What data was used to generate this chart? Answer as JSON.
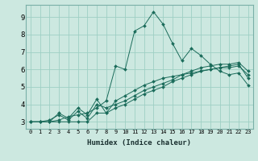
{
  "xlabel": "Humidex (Indice chaleur)",
  "ylabel": "",
  "background_color": "#cce8e0",
  "grid_color": "#9ecfc4",
  "line_color": "#1a6b5a",
  "xlim": [
    -0.5,
    23.5
  ],
  "ylim": [
    2.6,
    9.7
  ],
  "xticks": [
    0,
    1,
    2,
    3,
    4,
    5,
    6,
    7,
    8,
    9,
    10,
    11,
    12,
    13,
    14,
    15,
    16,
    17,
    18,
    19,
    20,
    21,
    22,
    23
  ],
  "yticks": [
    3,
    4,
    5,
    6,
    7,
    8,
    9
  ],
  "series": [
    [
      3.0,
      3.0,
      3.0,
      3.1,
      3.3,
      3.4,
      3.5,
      3.8,
      4.2,
      6.2,
      6.0,
      8.2,
      8.5,
      9.3,
      8.6,
      7.5,
      6.5,
      7.2,
      6.8,
      6.3,
      5.9,
      5.7,
      5.8,
      5.1
    ],
    [
      3.0,
      3.0,
      3.0,
      3.5,
      3.2,
      3.8,
      3.4,
      4.3,
      3.5,
      4.2,
      4.5,
      4.8,
      5.1,
      5.3,
      5.5,
      5.6,
      5.7,
      5.9,
      6.1,
      6.2,
      6.3,
      6.3,
      6.4,
      5.9
    ],
    [
      3.0,
      3.0,
      3.1,
      3.4,
      3.1,
      3.6,
      3.2,
      4.0,
      3.8,
      4.0,
      4.2,
      4.5,
      4.8,
      5.0,
      5.2,
      5.4,
      5.7,
      5.8,
      5.9,
      6.0,
      6.1,
      6.1,
      6.2,
      5.7
    ],
    [
      3.0,
      3.0,
      3.0,
      3.0,
      3.0,
      3.0,
      3.0,
      3.5,
      3.5,
      3.8,
      4.0,
      4.3,
      4.6,
      4.8,
      5.0,
      5.3,
      5.5,
      5.7,
      5.9,
      6.0,
      6.1,
      6.2,
      6.3,
      5.5
    ]
  ]
}
